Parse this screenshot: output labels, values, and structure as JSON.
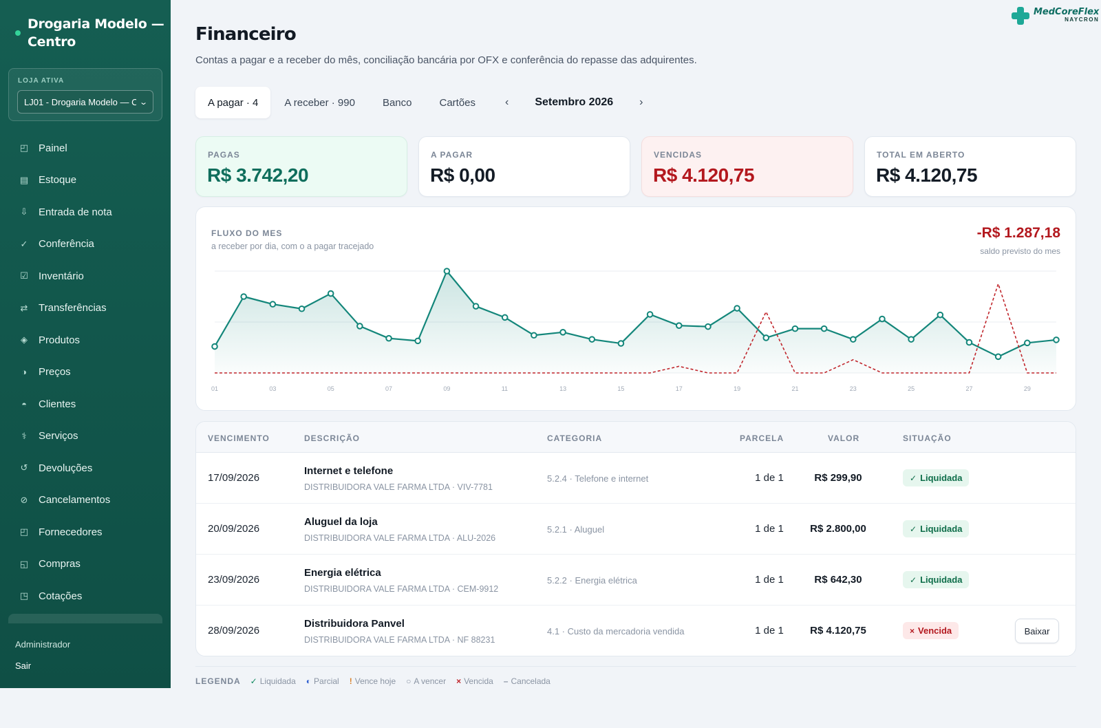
{
  "sidebar": {
    "brand": "Drogaria Modelo — Centro",
    "store_label": "LOJA ATIVA",
    "store_value": "LJ01 - Drogaria Modelo — Centro",
    "items": [
      {
        "label": "Painel",
        "icon": "◰"
      },
      {
        "label": "Estoque",
        "icon": "▤"
      },
      {
        "label": "Entrada de nota",
        "icon": "⇩"
      },
      {
        "label": "Conferência",
        "icon": "✓"
      },
      {
        "label": "Inventário",
        "icon": "☑"
      },
      {
        "label": "Transferências",
        "icon": "⇄"
      },
      {
        "label": "Produtos",
        "icon": "◈"
      },
      {
        "label": "Preços",
        "icon": "◑"
      },
      {
        "label": "Clientes",
        "icon": "◓"
      },
      {
        "label": "Serviços",
        "icon": "⚕"
      },
      {
        "label": "Devoluções",
        "icon": "↺"
      },
      {
        "label": "Cancelamentos",
        "icon": "⊘"
      },
      {
        "label": "Fornecedores",
        "icon": "◰"
      },
      {
        "label": "Compras",
        "icon": "◱"
      },
      {
        "label": "Cotações",
        "icon": "◳"
      }
    ],
    "user": "Administrador",
    "logout": "Sair"
  },
  "logo": {
    "main": "MedCoreFlex",
    "sub": "NAYCRON"
  },
  "header": {
    "title": "Financeiro",
    "subtitle": "Contas a pagar e a receber do mês, conciliação bancária por OFX e conferência do repasse das adquirentes."
  },
  "tabs": [
    {
      "label": "A pagar · 4",
      "active": true
    },
    {
      "label": "A receber · 990",
      "active": false
    },
    {
      "label": "Banco",
      "active": false
    },
    {
      "label": "Cartões",
      "active": false
    }
  ],
  "month_nav": {
    "prev": "‹",
    "label": "Setembro 2026",
    "next": "›"
  },
  "kpis": [
    {
      "label": "PAGAS",
      "value": "R$ 3.742,20",
      "tone": "green"
    },
    {
      "label": "A PAGAR",
      "value": "R$ 0,00",
      "tone": "neutral"
    },
    {
      "label": "VENCIDAS",
      "value": "R$ 4.120,75",
      "tone": "red"
    },
    {
      "label": "TOTAL EM ABERTO",
      "value": "R$ 4.120,75",
      "tone": "neutral"
    }
  ],
  "chart": {
    "title": "FLUXO DO MES",
    "subtitle": "a receber por dia, com o a pagar tracejado",
    "balance": "-R$ 1.287,18",
    "balance_label": "saldo previsto do mes"
  },
  "chart_data": {
    "type": "line",
    "x": [
      "01",
      "02",
      "03",
      "04",
      "05",
      "06",
      "07",
      "08",
      "09",
      "10",
      "11",
      "12",
      "13",
      "14",
      "15",
      "16",
      "17",
      "18",
      "19",
      "20",
      "21",
      "22",
      "23",
      "24",
      "25",
      "26",
      "27",
      "28",
      "29",
      "30"
    ],
    "x_tick_labels": [
      "01",
      "03",
      "05",
      "07",
      "09",
      "11",
      "13",
      "15",
      "17",
      "19",
      "21",
      "23",
      "25",
      "27",
      "29"
    ],
    "series": [
      {
        "values": [
          52,
          150,
          135,
          126,
          156,
          92,
          68,
          63,
          200,
          131,
          109,
          74,
          80,
          66,
          58,
          115,
          93,
          91,
          127,
          69,
          87,
          87,
          66,
          106,
          66,
          114,
          60,
          32,
          59,
          65
        ],
        "color": "#13867a",
        "style": "solid-area"
      },
      {
        "values": [
          0,
          0,
          0,
          0,
          0,
          0,
          0,
          0,
          0,
          0,
          0,
          0,
          0,
          0,
          0,
          0,
          13,
          0,
          0,
          120,
          0,
          0,
          26,
          0,
          0,
          0,
          0,
          175,
          0,
          0
        ],
        "color": "#c0252b",
        "style": "dashed"
      }
    ],
    "ylim": [
      0,
      200
    ],
    "grid": true
  },
  "table": {
    "headers": [
      "VENCIMENTO",
      "DESCRIÇÃO",
      "CATEGORIA",
      "PARCELA",
      "VALOR",
      "SITUAÇÃO"
    ],
    "rows": [
      {
        "date": "17/09/2026",
        "desc": "Internet e telefone",
        "supplier": "DISTRIBUIDORA VALE FARMA LTDA · VIV-7781",
        "category": "5.2.4 · Telefone e internet",
        "parcel": "1 de 1",
        "value": "R$ 299,90",
        "status": "Liquidada",
        "status_icon": "✓",
        "tone": "ok"
      },
      {
        "date": "20/09/2026",
        "desc": "Aluguel da loja",
        "supplier": "DISTRIBUIDORA VALE FARMA LTDA · ALU-2026",
        "category": "5.2.1 · Aluguel",
        "parcel": "1 de 1",
        "value": "R$ 2.800,00",
        "status": "Liquidada",
        "status_icon": "✓",
        "tone": "ok"
      },
      {
        "date": "23/09/2026",
        "desc": "Energia elétrica",
        "supplier": "DISTRIBUIDORA VALE FARMA LTDA · CEM-9912",
        "category": "5.2.2 · Energia elétrica",
        "parcel": "1 de 1",
        "value": "R$ 642,30",
        "status": "Liquidada",
        "status_icon": "✓",
        "tone": "ok"
      },
      {
        "date": "28/09/2026",
        "desc": "Distribuidora Panvel",
        "supplier": "DISTRIBUIDORA VALE FARMA LTDA · NF 88231",
        "category": "4.1 · Custo da mercadoria vendida",
        "parcel": "1 de 1",
        "value": "R$ 4.120,75",
        "status": "Vencida",
        "status_icon": "×",
        "tone": "late",
        "action": "Baixar"
      }
    ]
  },
  "legend": {
    "title": "LEGENDA",
    "items": [
      {
        "symbol": "✓",
        "label": "Liquidada",
        "color": "#0f8a5f"
      },
      {
        "symbol": "◐",
        "label": "Parcial",
        "color": "#2f5fd0"
      },
      {
        "symbol": "!",
        "label": "Vence hoje",
        "color": "#d9822b"
      },
      {
        "symbol": "○",
        "label": "A vencer",
        "color": "#8a94a3"
      },
      {
        "symbol": "×",
        "label": "Vencida",
        "color": "#c0252b"
      },
      {
        "symbol": "–",
        "label": "Cancelada",
        "color": "#8a94a3"
      }
    ]
  }
}
